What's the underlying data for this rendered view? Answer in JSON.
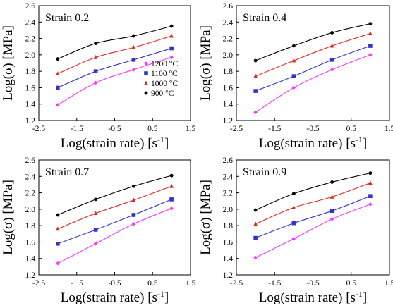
{
  "chart_data": [
    {
      "type": "line",
      "title": "Strain 0.2",
      "xlabel": "Log(strain rate) [s",
      "xlabel_sup": "-1",
      "xlabel_end": "]",
      "ylabel": "Log(σ) [MPa]",
      "xlim": [
        -2.5,
        1.5
      ],
      "ylim": [
        1.2,
        2.6
      ],
      "xticks": [
        "-2.5",
        "-1.5",
        "-0.5",
        "0.5",
        "1.5"
      ],
      "yticks": [
        "1.2",
        "1.4",
        "1.6",
        "1.8",
        "2.0",
        "2.2",
        "2.4",
        "2.6"
      ],
      "legend": "inside-right",
      "x": [
        -2,
        -1,
        0,
        1
      ],
      "series": [
        {
          "name": "1200 °C",
          "color": "#ff33ff",
          "marker": "diamond",
          "values": [
            1.39,
            1.66,
            1.82,
            1.97
          ]
        },
        {
          "name": "1100 °C",
          "color": "#3333cc",
          "marker": "square",
          "values": [
            1.6,
            1.8,
            1.94,
            2.08
          ]
        },
        {
          "name": "1000 °C",
          "color": "#e8221e",
          "marker": "triangle",
          "values": [
            1.77,
            1.97,
            2.09,
            2.23
          ]
        },
        {
          "name": "900 °C",
          "color": "#000000",
          "marker": "circle",
          "values": [
            1.95,
            2.14,
            2.23,
            2.35
          ]
        }
      ]
    },
    {
      "type": "line",
      "title": "Strain 0.4",
      "xlabel": "Log(strain rate) [s",
      "xlabel_sup": "-1",
      "xlabel_end": "]",
      "ylabel": "Log(σ) [MPa]",
      "xlim": [
        -2.5,
        1.5
      ],
      "ylim": [
        1.2,
        2.6
      ],
      "xticks": [
        "-2.5",
        "-1.5",
        "-0.5",
        "0.5",
        "1.5"
      ],
      "yticks": [
        "1.2",
        "1.4",
        "1.6",
        "1.8",
        "2.0",
        "2.2",
        "2.4",
        "2.6"
      ],
      "x": [
        -2,
        -1,
        0,
        1
      ],
      "series": [
        {
          "color": "#ff33ff",
          "marker": "diamond",
          "values": [
            1.3,
            1.6,
            1.82,
            2.0
          ]
        },
        {
          "color": "#3333cc",
          "marker": "square",
          "values": [
            1.56,
            1.74,
            1.94,
            2.11
          ]
        },
        {
          "color": "#e8221e",
          "marker": "triangle",
          "values": [
            1.74,
            1.93,
            2.11,
            2.26
          ]
        },
        {
          "color": "#000000",
          "marker": "circle",
          "values": [
            1.93,
            2.11,
            2.27,
            2.38
          ]
        }
      ]
    },
    {
      "type": "line",
      "title": "Strain 0.7",
      "xlabel": "Log(strain rate) [s",
      "xlabel_sup": "-1",
      "xlabel_end": "]",
      "ylabel": "Log(σ) [MPa]",
      "xlim": [
        -2.5,
        1.5
      ],
      "ylim": [
        1.2,
        2.6
      ],
      "xticks": [
        "-2.5",
        "-1.5",
        "-0.5",
        "0.5",
        "1.5"
      ],
      "yticks": [
        "1.2",
        "1.4",
        "1.6",
        "1.8",
        "2.0",
        "2.2",
        "2.4",
        "2.6"
      ],
      "x": [
        -2,
        -1,
        0,
        1
      ],
      "series": [
        {
          "color": "#ff33ff",
          "marker": "diamond",
          "values": [
            1.34,
            1.58,
            1.82,
            2.01
          ]
        },
        {
          "color": "#3333cc",
          "marker": "square",
          "values": [
            1.58,
            1.75,
            1.93,
            2.12
          ]
        },
        {
          "color": "#e8221e",
          "marker": "triangle",
          "values": [
            1.76,
            1.95,
            2.11,
            2.28
          ]
        },
        {
          "color": "#000000",
          "marker": "circle",
          "values": [
            1.93,
            2.12,
            2.28,
            2.41
          ]
        }
      ]
    },
    {
      "type": "line",
      "title": "Strain 0.9",
      "xlabel": "Log(strain rate) [s",
      "xlabel_sup": "-1",
      "xlabel_end": "]",
      "ylabel": "Log(σ) [MPa]",
      "xlim": [
        -2.5,
        1.5
      ],
      "ylim": [
        1.2,
        2.6
      ],
      "xticks": [
        "-2.5",
        "-1.5",
        "-0.5",
        "0.5",
        "1.5"
      ],
      "yticks": [
        "1.2",
        "1.4",
        "1.6",
        "1.8",
        "2.0",
        "2.2",
        "2.4",
        "2.6"
      ],
      "x": [
        -2,
        -1,
        0,
        1
      ],
      "series": [
        {
          "color": "#ff33ff",
          "marker": "diamond",
          "values": [
            1.41,
            1.64,
            1.88,
            2.06
          ]
        },
        {
          "color": "#3333cc",
          "marker": "square",
          "values": [
            1.65,
            1.83,
            1.98,
            2.16
          ]
        },
        {
          "color": "#e8221e",
          "marker": "triangle",
          "values": [
            1.82,
            2.02,
            2.15,
            2.32
          ]
        },
        {
          "color": "#000000",
          "marker": "circle",
          "values": [
            1.99,
            2.19,
            2.33,
            2.44
          ]
        }
      ]
    }
  ]
}
